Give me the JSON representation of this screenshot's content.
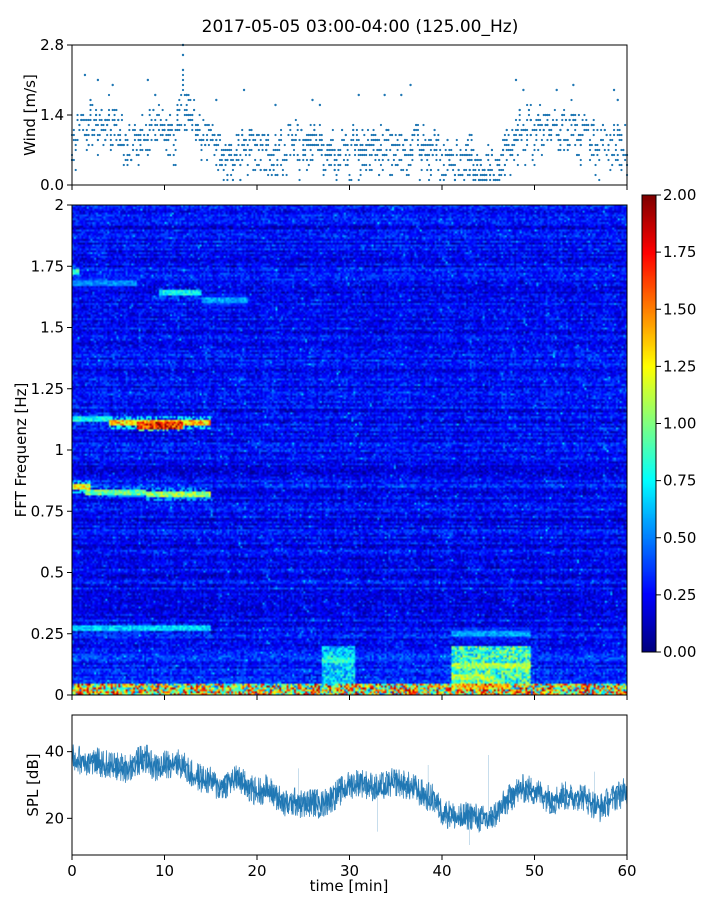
{
  "title": "2017-05-05 03:00-04:00 (125.00_Hz)",
  "chart_data": [
    {
      "type": "scatter",
      "panel": "wind",
      "ylabel": "Wind [m/s]",
      "xlim": [
        0,
        60
      ],
      "ylim": [
        0,
        2.8
      ],
      "yticks": [
        "0.0",
        "1.4",
        "2.8"
      ],
      "marker_color": "#1f77b4",
      "x_step_min": 0.2,
      "y_quantum": 0.1,
      "envelope": {
        "x": [
          0,
          1,
          2,
          3,
          4,
          5,
          6,
          8,
          10,
          11,
          12,
          14,
          16,
          18,
          20,
          22,
          24,
          26,
          28,
          30,
          32,
          34,
          36,
          38,
          40,
          42,
          44,
          46,
          48,
          50,
          52,
          54,
          56,
          58,
          60
        ],
        "y": [
          1.0,
          1.5,
          1.6,
          1.4,
          1.5,
          1.4,
          1.0,
          1.3,
          1.5,
          1.2,
          2.0,
          1.1,
          0.8,
          0.9,
          1.1,
          0.9,
          1.0,
          1.1,
          0.8,
          0.9,
          1.1,
          1.0,
          1.1,
          1.0,
          0.7,
          0.6,
          0.7,
          0.5,
          1.2,
          1.4,
          1.3,
          1.4,
          1.1,
          1.0,
          1.0
        ]
      },
      "spread": 0.6,
      "peaks": [
        {
          "x": 1.4,
          "y": 2.2
        },
        {
          "x": 2.8,
          "y": 2.1
        },
        {
          "x": 4.4,
          "y": 2.0
        },
        {
          "x": 8.2,
          "y": 2.1
        },
        {
          "x": 9.0,
          "y": 1.8
        },
        {
          "x": 12.0,
          "y": 2.8
        },
        {
          "x": 12.0,
          "y": 2.6
        },
        {
          "x": 12.0,
          "y": 2.3
        },
        {
          "x": 12.4,
          "y": 1.8
        },
        {
          "x": 15.6,
          "y": 1.7
        },
        {
          "x": 18.6,
          "y": 1.9
        },
        {
          "x": 22.0,
          "y": 1.6
        },
        {
          "x": 26.0,
          "y": 1.7
        },
        {
          "x": 26.8,
          "y": 1.6
        },
        {
          "x": 31.0,
          "y": 1.8
        },
        {
          "x": 33.8,
          "y": 1.8
        },
        {
          "x": 35.6,
          "y": 1.8
        },
        {
          "x": 36.6,
          "y": 2.0
        },
        {
          "x": 43.0,
          "y": 1.0
        },
        {
          "x": 48.0,
          "y": 2.1
        },
        {
          "x": 48.8,
          "y": 1.9
        },
        {
          "x": 52.4,
          "y": 1.9
        },
        {
          "x": 54.2,
          "y": 2.0
        },
        {
          "x": 58.6,
          "y": 1.9
        },
        {
          "x": 59.0,
          "y": 1.7
        }
      ]
    },
    {
      "type": "heatmap",
      "panel": "spectrogram",
      "ylabel": "FFT Frequenz [Hz]",
      "xlim": [
        0,
        60
      ],
      "ylim": [
        0,
        2
      ],
      "yticks": [
        "0",
        "0.25",
        "0.5",
        "0.75",
        "1",
        "1.25",
        "1.5",
        "1.75",
        "2"
      ],
      "colormap": "jet",
      "colorbar": {
        "vmin": 0,
        "vmax": 2,
        "ticks": [
          "0.00",
          "0.25",
          "0.50",
          "0.75",
          "1.00",
          "1.25",
          "1.50",
          "1.75",
          "2.00"
        ]
      },
      "background_level": 0.25,
      "low_frequency_band": {
        "f_max": 0.05,
        "level": 1.4
      },
      "features": [
        {
          "t0": 0,
          "t1": 0.8,
          "f": 1.73,
          "level": 0.9
        },
        {
          "t0": 0,
          "t1": 7.0,
          "f": 1.68,
          "level": 0.55
        },
        {
          "t0": 9.5,
          "t1": 14.0,
          "f": 1.64,
          "level": 0.8
        },
        {
          "t0": 14.0,
          "t1": 19.0,
          "f": 1.61,
          "level": 0.6
        },
        {
          "t0": 0,
          "t1": 4.0,
          "f": 1.13,
          "level": 0.8
        },
        {
          "t0": 4.0,
          "t1": 15.0,
          "f": 1.11,
          "level": 1.4
        },
        {
          "t0": 7.0,
          "t1": 12.0,
          "f": 1.1,
          "level": 1.8
        },
        {
          "t0": 0,
          "t1": 2.0,
          "f": 0.85,
          "level": 1.3
        },
        {
          "t0": 1.5,
          "t1": 8.0,
          "f": 0.83,
          "level": 1.0
        },
        {
          "t0": 8.0,
          "t1": 15.0,
          "f": 0.82,
          "level": 1.1
        },
        {
          "t0": 0,
          "t1": 15.0,
          "f": 0.27,
          "level": 0.7
        },
        {
          "t0": 27.0,
          "t1": 30.5,
          "f": 0.14,
          "level": 0.85
        },
        {
          "t0": 41.0,
          "t1": 49.5,
          "f": 0.12,
          "level": 1.1
        },
        {
          "t0": 41.0,
          "t1": 45.5,
          "f": 0.07,
          "level": 1.15
        },
        {
          "t0": 41.0,
          "t1": 47.0,
          "f": 0.035,
          "level": 1.3
        },
        {
          "t0": 41.0,
          "t1": 49.5,
          "f": 0.25,
          "level": 0.6
        }
      ]
    },
    {
      "type": "line",
      "panel": "spl",
      "ylabel": "SPL [dB]",
      "xlabel": "time [min]",
      "xlim": [
        0,
        60
      ],
      "ylim": [
        9,
        51
      ],
      "yticks": [
        "20",
        "40"
      ],
      "xticks": [
        "0",
        "10",
        "20",
        "30",
        "40",
        "50",
        "60"
      ],
      "line_color": "#1f77b4",
      "series": [
        {
          "x": [
            0,
            2,
            4,
            6,
            7,
            8,
            9,
            10,
            11,
            12,
            13,
            14,
            15,
            16,
            17,
            18,
            19,
            20,
            21,
            22,
            23,
            24,
            25,
            26,
            27,
            28,
            29,
            30,
            31,
            32,
            33,
            34,
            35,
            36,
            37,
            38,
            39,
            40,
            41,
            42,
            43,
            44,
            45,
            46,
            47,
            48,
            49,
            50,
            51,
            52,
            53,
            54,
            55,
            56,
            57,
            58,
            59,
            60
          ],
          "y": [
            38,
            37,
            36,
            35,
            37,
            38,
            35,
            36,
            37,
            36,
            33,
            32,
            31,
            29,
            31,
            32,
            29,
            28,
            29,
            27,
            24,
            25,
            24,
            25,
            24,
            26,
            28,
            30,
            31,
            30,
            29,
            30,
            31,
            30,
            29,
            27,
            26,
            22,
            21,
            20,
            21,
            20,
            19,
            22,
            25,
            28,
            29,
            28,
            27,
            25,
            27,
            26,
            27,
            25,
            23,
            25,
            27,
            28
          ]
        }
      ],
      "band": 4.5
    }
  ]
}
